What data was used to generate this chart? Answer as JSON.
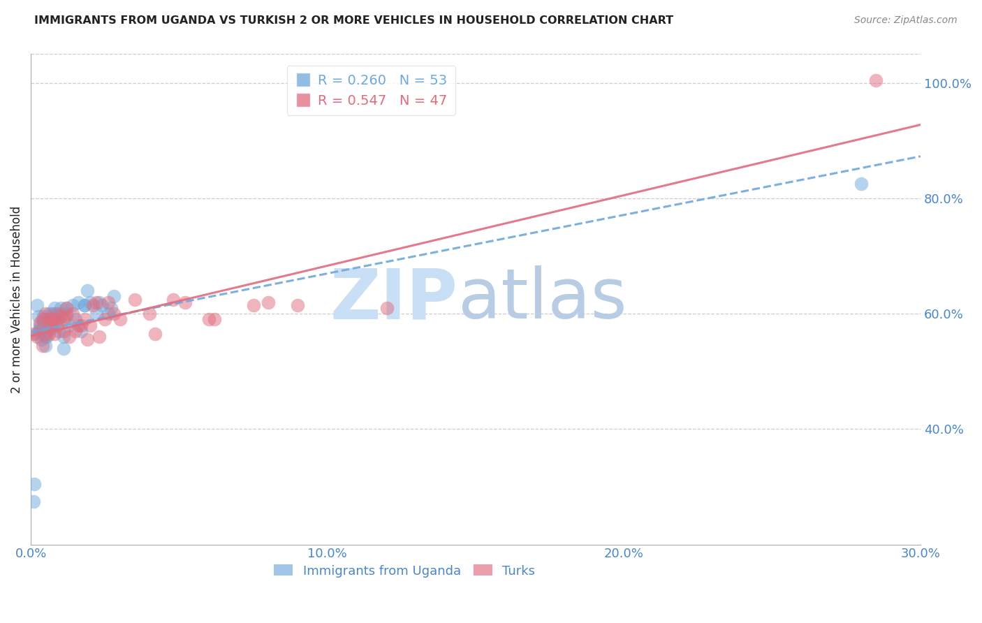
{
  "title": "IMMIGRANTS FROM UGANDA VS TURKISH 2 OR MORE VEHICLES IN HOUSEHOLD CORRELATION CHART",
  "source": "Source: ZipAtlas.com",
  "ylabel_left": "2 or more Vehicles in Household",
  "xlim": [
    0.0,
    0.3
  ],
  "ylim": [
    0.2,
    1.05
  ],
  "background_color": "#ffffff",
  "grid_color": "#cccccc",
  "axis_color": "#aaaaaa",
  "title_color": "#222222",
  "source_color": "#888888",
  "tick_label_color": "#4a86c8",
  "uganda_color": "#6fa8dc",
  "turks_color": "#e06c7e",
  "watermark_zip": "ZIP",
  "watermark_atlas": "atlas",
  "watermark_color_zip": "#c8dff5",
  "watermark_color_atlas": "#b8cce4",
  "uganda_x": [
    0.0008,
    0.0012,
    0.0018,
    0.0022,
    0.0025,
    0.0028,
    0.003,
    0.003,
    0.0035,
    0.004,
    0.004,
    0.0042,
    0.0045,
    0.005,
    0.005,
    0.005,
    0.0055,
    0.006,
    0.006,
    0.006,
    0.0065,
    0.007,
    0.007,
    0.0072,
    0.0075,
    0.008,
    0.008,
    0.0085,
    0.009,
    0.009,
    0.0095,
    0.01,
    0.01,
    0.011,
    0.011,
    0.012,
    0.012,
    0.013,
    0.014,
    0.015,
    0.016,
    0.017,
    0.018,
    0.018,
    0.019,
    0.02,
    0.022,
    0.023,
    0.024,
    0.026,
    0.027,
    0.028,
    0.28
  ],
  "uganda_y": [
    0.275,
    0.305,
    0.565,
    0.615,
    0.595,
    0.57,
    0.575,
    0.58,
    0.555,
    0.565,
    0.575,
    0.595,
    0.59,
    0.545,
    0.56,
    0.57,
    0.56,
    0.59,
    0.575,
    0.6,
    0.59,
    0.575,
    0.6,
    0.58,
    0.59,
    0.61,
    0.6,
    0.595,
    0.59,
    0.59,
    0.57,
    0.6,
    0.61,
    0.54,
    0.56,
    0.61,
    0.6,
    0.58,
    0.615,
    0.59,
    0.62,
    0.57,
    0.615,
    0.615,
    0.64,
    0.62,
    0.6,
    0.62,
    0.615,
    0.6,
    0.61,
    0.63,
    0.825
  ],
  "turks_x": [
    0.001,
    0.002,
    0.003,
    0.004,
    0.004,
    0.005,
    0.005,
    0.006,
    0.006,
    0.007,
    0.007,
    0.008,
    0.008,
    0.009,
    0.009,
    0.01,
    0.011,
    0.011,
    0.012,
    0.012,
    0.013,
    0.014,
    0.015,
    0.016,
    0.017,
    0.018,
    0.019,
    0.02,
    0.021,
    0.022,
    0.023,
    0.025,
    0.026,
    0.028,
    0.03,
    0.035,
    0.04,
    0.042,
    0.048,
    0.052,
    0.06,
    0.062,
    0.075,
    0.08,
    0.09,
    0.12,
    0.285
  ],
  "turks_y": [
    0.565,
    0.56,
    0.585,
    0.545,
    0.59,
    0.565,
    0.6,
    0.565,
    0.59,
    0.58,
    0.59,
    0.565,
    0.59,
    0.58,
    0.6,
    0.595,
    0.59,
    0.57,
    0.595,
    0.61,
    0.56,
    0.6,
    0.57,
    0.58,
    0.58,
    0.59,
    0.555,
    0.58,
    0.615,
    0.62,
    0.56,
    0.59,
    0.62,
    0.6,
    0.59,
    0.625,
    0.6,
    0.565,
    0.625,
    0.62,
    0.59,
    0.59,
    0.615,
    0.62,
    0.615,
    0.61,
    1.005
  ],
  "uganda_R": 0.26,
  "uganda_N": 53,
  "turks_R": 0.547,
  "turks_N": 47,
  "yticks": [
    0.4,
    0.6,
    0.8,
    1.0
  ],
  "xticks": [
    0.0,
    0.1,
    0.2,
    0.3
  ]
}
